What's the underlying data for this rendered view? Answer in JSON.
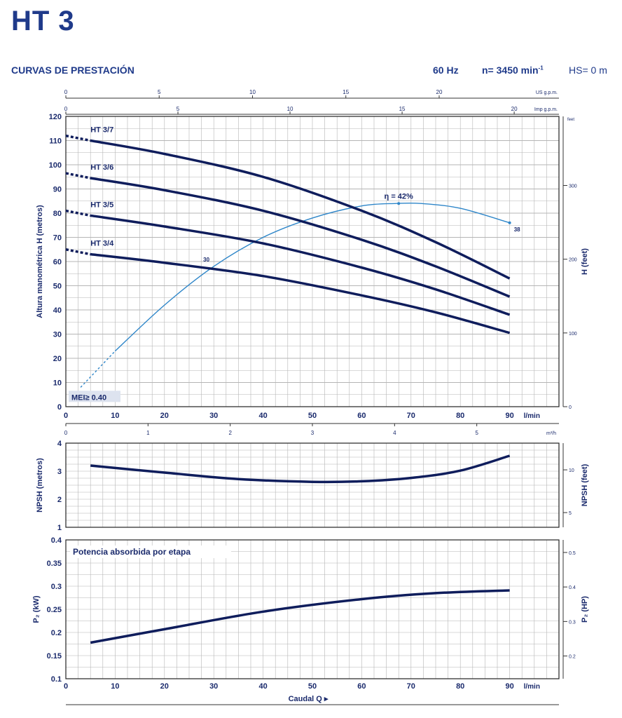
{
  "header": {
    "title": "HT 3",
    "subtitle": "CURVAS DE PRESTACIÓN",
    "freq": "60 Hz",
    "speed": "n= 3450 min",
    "speed_sup": "-1",
    "hs": "HS= 0 m"
  },
  "colors": {
    "curve": "#0f1d5c",
    "efficiency": "#2e86c9",
    "grid": "#b5b5b5",
    "text": "#1a2a6c"
  },
  "axes": {
    "x_lmin_label": "l/min",
    "x_lmin_ticks": [
      0,
      10,
      20,
      30,
      40,
      50,
      60,
      70,
      80,
      90
    ],
    "x_usgpm_label": "US g.p.m.",
    "x_usgpm_ticks": [
      0,
      5,
      10,
      15,
      20
    ],
    "x_impgpm_label": "Imp g.p.m.",
    "x_impgpm_ticks": [
      0,
      5,
      10,
      15,
      20
    ],
    "x_m3h_label": "m³/h",
    "x_m3h_ticks": [
      0,
      1,
      2,
      3,
      4,
      5
    ],
    "head_ylabel": "Altura manométrica  H (metros)",
    "head_yticks": [
      0,
      10,
      20,
      30,
      40,
      50,
      60,
      70,
      80,
      90,
      100,
      110,
      120
    ],
    "head_feet_label": "H (feet)",
    "head_feet_unit": "feet",
    "head_feet_ticks": [
      0,
      100,
      200,
      300
    ],
    "npsh_ylabel": "NPSH (metros)",
    "npsh_yticks": [
      1,
      2,
      3,
      4
    ],
    "npsh_feet_label": "NPSH (feet)",
    "npsh_feet_ticks": [
      5,
      10
    ],
    "power_ylabel": "P₂ (kW)",
    "power_yticks": [
      0.1,
      0.15,
      0.2,
      0.25,
      0.3,
      0.35,
      0.4
    ],
    "power_hp_label": "P₂ (HP)",
    "power_hp_ticks": [
      0.2,
      0.3,
      0.4,
      0.5
    ],
    "bottom_label": "Caudal Q"
  },
  "chart_data": [
    {
      "type": "line",
      "title": "",
      "xlabel": "l/min",
      "ylabel": "Altura manométrica  H (metros)",
      "xlim": [
        0,
        100
      ],
      "ylim": [
        0,
        120
      ],
      "series": [
        {
          "name": "HT 3/7",
          "x": [
            5,
            20,
            40,
            60,
            75,
            90
          ],
          "y": [
            110,
            104.5,
            95,
            81,
            68,
            53
          ]
        },
        {
          "name": "HT 3/6",
          "x": [
            5,
            20,
            40,
            60,
            75,
            90
          ],
          "y": [
            94.5,
            89.5,
            81,
            69,
            58,
            45.5
          ]
        },
        {
          "name": "HT 3/5",
          "x": [
            5,
            20,
            40,
            60,
            75,
            90
          ],
          "y": [
            79,
            74.5,
            67.5,
            57.5,
            48.5,
            38
          ]
        },
        {
          "name": "HT 3/4",
          "x": [
            5,
            20,
            40,
            60,
            75,
            90
          ],
          "y": [
            63,
            59.5,
            54,
            46,
            39,
            30.5
          ]
        }
      ],
      "efficiency": {
        "label": "η = 42%",
        "x": [
          3,
          10,
          20,
          30,
          40,
          50,
          60,
          67,
          72,
          80,
          90
        ],
        "y": [
          8,
          23,
          42,
          58,
          70,
          78,
          83,
          84,
          84,
          82,
          76
        ],
        "annotations": [
          "30",
          "38"
        ]
      },
      "mei_label": "MEI≥ 0.40"
    },
    {
      "type": "line",
      "title": "",
      "ylabel": "NPSH (metros)",
      "xlim": [
        0,
        100
      ],
      "ylim": [
        1,
        4
      ],
      "series": [
        {
          "x": [
            5,
            20,
            35,
            50,
            60,
            70,
            80,
            90
          ],
          "y": [
            3.2,
            2.95,
            2.72,
            2.62,
            2.64,
            2.76,
            3.02,
            3.55
          ]
        }
      ]
    },
    {
      "type": "line",
      "title": "Potencia absorbida por etapa",
      "ylabel": "P₂ (kW)",
      "xlabel": "Caudal Q",
      "xlim": [
        0,
        100
      ],
      "ylim": [
        0.1,
        0.4
      ],
      "series": [
        {
          "x": [
            5,
            20,
            40,
            60,
            75,
            90
          ],
          "y": [
            0.178,
            0.207,
            0.245,
            0.272,
            0.285,
            0.291
          ]
        }
      ]
    }
  ]
}
